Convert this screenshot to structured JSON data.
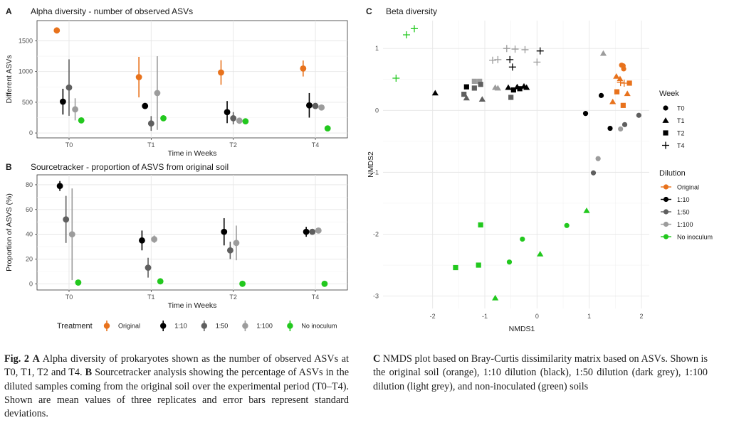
{
  "colors": {
    "Original": "#e8721c",
    "1:10": "#000000",
    "1:50": "#5f5f5f",
    "1:100": "#9c9c9c",
    "No inoculum": "#22c81e"
  },
  "chart_data": [
    {
      "panel": "A",
      "type": "scatter",
      "title": "Alpha diversity -  number of observed ASVs",
      "xlabel": "Time in Weeks",
      "ylabel": "Different ASVs",
      "categories": [
        "T0",
        "T1",
        "T2",
        "T4"
      ],
      "y_ticks": [
        "0",
        "500",
        "1000",
        "1500"
      ],
      "ylim": [
        -80,
        1830
      ],
      "grid": true,
      "series": [
        {
          "name": "Original",
          "mean": [
            1670,
            910,
            985,
            1050
          ],
          "sd": [
            0,
            330,
            200,
            130
          ]
        },
        {
          "name": "1:10",
          "mean": [
            510,
            440,
            340,
            450
          ],
          "sd": [
            210,
            0,
            180,
            200
          ]
        },
        {
          "name": "1:50",
          "mean": [
            740,
            155,
            240,
            440
          ],
          "sd": [
            460,
            120,
            100,
            0
          ]
        },
        {
          "name": "1:100",
          "mean": [
            385,
            650,
            200,
            415
          ],
          "sd": [
            180,
            600,
            0,
            0
          ]
        },
        {
          "name": "No inoculum",
          "mean": [
            205,
            240,
            190,
            75
          ],
          "sd": [
            0,
            0,
            0,
            0
          ]
        }
      ]
    },
    {
      "panel": "B",
      "type": "scatter",
      "title": "Sourcetracker - proportion of ASVS from original soil",
      "xlabel": "Time in Weeks",
      "ylabel": "Proportion of ASVS (%)",
      "categories": [
        "T0",
        "T1",
        "T2",
        "T4"
      ],
      "y_ticks": [
        "0",
        "20",
        "40",
        "60",
        "80"
      ],
      "ylim": [
        -5,
        88
      ],
      "grid": true,
      "series": [
        {
          "name": "1:10",
          "mean": [
            79,
            35,
            42,
            42
          ],
          "sd": [
            4,
            8,
            11,
            4
          ]
        },
        {
          "name": "1:50",
          "mean": [
            52,
            13,
            27,
            42
          ],
          "sd": [
            19,
            8,
            7,
            0
          ]
        },
        {
          "name": "1:100",
          "mean": [
            40,
            36,
            33,
            43
          ],
          "sd": [
            37,
            3,
            14,
            0
          ]
        },
        {
          "name": "No inoculum",
          "mean": [
            1,
            2,
            0,
            0
          ],
          "sd": [
            0,
            0,
            0,
            0
          ]
        }
      ]
    },
    {
      "panel": "C",
      "type": "scatter",
      "title": "Beta diversity",
      "xlabel": "NMDS1",
      "ylabel": "NMDS2",
      "x_ticks": [
        "-2",
        "-1",
        "0",
        "1",
        "2"
      ],
      "y_ticks": [
        "-3",
        "-2",
        "-1",
        "0",
        "1"
      ],
      "xlim": [
        -2.95,
        2.15
      ],
      "ylim": [
        -3.2,
        1.45
      ],
      "grid": true,
      "legend_position": "right",
      "points": [
        {
          "t": "T4",
          "d": "No inoculum",
          "x": -2.5,
          "y": 1.22
        },
        {
          "t": "T4",
          "d": "No inoculum",
          "x": -2.35,
          "y": 1.32
        },
        {
          "t": "T4",
          "d": "No inoculum",
          "x": -2.7,
          "y": 0.52
        },
        {
          "t": "T1",
          "d": "1:10",
          "x": -1.95,
          "y": 0.28
        },
        {
          "t": "T2",
          "d": "1:10",
          "x": -1.35,
          "y": 0.38
        },
        {
          "t": "T2",
          "d": "1:50",
          "x": -1.2,
          "y": 0.36
        },
        {
          "t": "T2",
          "d": "1:100",
          "x": -1.2,
          "y": 0.47
        },
        {
          "t": "T2",
          "d": "1:100",
          "x": -1.1,
          "y": 0.47
        },
        {
          "t": "T1",
          "d": "1:50",
          "x": -1.35,
          "y": 0.2
        },
        {
          "t": "T2",
          "d": "1:50",
          "x": -1.4,
          "y": 0.26
        },
        {
          "t": "T2",
          "d": "1:50",
          "x": -1.08,
          "y": 0.42
        },
        {
          "t": "T1",
          "d": "1:50",
          "x": -1.05,
          "y": 0.18
        },
        {
          "t": "T1",
          "d": "1:100",
          "x": -0.8,
          "y": 0.37
        },
        {
          "t": "T1",
          "d": "1:100",
          "x": -0.75,
          "y": 0.36
        },
        {
          "t": "T2",
          "d": "1:50",
          "x": -0.5,
          "y": 0.21
        },
        {
          "t": "T1",
          "d": "1:10",
          "x": -0.55,
          "y": 0.37
        },
        {
          "t": "T2",
          "d": "1:10",
          "x": -0.45,
          "y": 0.33
        },
        {
          "t": "T1",
          "d": "1:10",
          "x": -0.38,
          "y": 0.38
        },
        {
          "t": "T2",
          "d": "1:10",
          "x": -0.33,
          "y": 0.35
        },
        {
          "t": "T1",
          "d": "1:10",
          "x": -0.25,
          "y": 0.39
        },
        {
          "t": "T1",
          "d": "1:10",
          "x": -0.2,
          "y": 0.37
        },
        {
          "t": "T4",
          "d": "1:100",
          "x": -0.85,
          "y": 0.81
        },
        {
          "t": "T4",
          "d": "1:100",
          "x": -0.75,
          "y": 0.82
        },
        {
          "t": "T4",
          "d": "1:100",
          "x": -0.58,
          "y": 1.0
        },
        {
          "t": "T4",
          "d": "1:100",
          "x": -0.42,
          "y": 0.99
        },
        {
          "t": "T4",
          "d": "1:100",
          "x": -0.23,
          "y": 0.98
        },
        {
          "t": "T4",
          "d": "1:10",
          "x": -0.52,
          "y": 0.82
        },
        {
          "t": "T4",
          "d": "1:10",
          "x": -0.47,
          "y": 0.7
        },
        {
          "t": "T4",
          "d": "1:100",
          "x": 0.0,
          "y": 0.78
        },
        {
          "t": "T4",
          "d": "1:10",
          "x": 0.06,
          "y": 0.96
        },
        {
          "t": "T1",
          "d": "1:100",
          "x": 1.27,
          "y": 0.92
        },
        {
          "t": "T0",
          "d": "Original",
          "x": 1.62,
          "y": 0.73
        },
        {
          "t": "T0",
          "d": "Original",
          "x": 1.65,
          "y": 0.72
        },
        {
          "t": "T0",
          "d": "Original",
          "x": 1.66,
          "y": 0.67
        },
        {
          "t": "T1",
          "d": "Original",
          "x": 1.52,
          "y": 0.55
        },
        {
          "t": "T1",
          "d": "Original",
          "x": 1.59,
          "y": 0.51
        },
        {
          "t": "T4",
          "d": "Original",
          "x": 1.6,
          "y": 0.45
        },
        {
          "t": "T4",
          "d": "Original",
          "x": 1.67,
          "y": 0.44
        },
        {
          "t": "T2",
          "d": "Original",
          "x": 1.77,
          "y": 0.44
        },
        {
          "t": "T2",
          "d": "Original",
          "x": 1.53,
          "y": 0.3
        },
        {
          "t": "T1",
          "d": "Original",
          "x": 1.45,
          "y": 0.14
        },
        {
          "t": "T1",
          "d": "Original",
          "x": 1.73,
          "y": 0.27
        },
        {
          "t": "T2",
          "d": "Original",
          "x": 1.65,
          "y": 0.08
        },
        {
          "t": "T0",
          "d": "1:10",
          "x": 1.23,
          "y": 0.24
        },
        {
          "t": "T0",
          "d": "1:10",
          "x": 0.93,
          "y": -0.05
        },
        {
          "t": "T0",
          "d": "1:10",
          "x": 1.4,
          "y": -0.29
        },
        {
          "t": "T0",
          "d": "1:50",
          "x": 1.68,
          "y": -0.23
        },
        {
          "t": "T0",
          "d": "1:100",
          "x": 1.6,
          "y": -0.3
        },
        {
          "t": "T0",
          "d": "1:50",
          "x": 1.95,
          "y": -0.08
        },
        {
          "t": "T0",
          "d": "1:100",
          "x": 1.17,
          "y": -0.78
        },
        {
          "t": "T0",
          "d": "1:50",
          "x": 1.08,
          "y": -1.01
        },
        {
          "t": "T1",
          "d": "No inoculum",
          "x": 0.95,
          "y": -1.62
        },
        {
          "t": "T0",
          "d": "No inoculum",
          "x": 0.57,
          "y": -1.86
        },
        {
          "t": "T2",
          "d": "No inoculum",
          "x": -1.08,
          "y": -1.85
        },
        {
          "t": "T0",
          "d": "No inoculum",
          "x": -0.28,
          "y": -2.08
        },
        {
          "t": "T1",
          "d": "No inoculum",
          "x": 0.06,
          "y": -2.32
        },
        {
          "t": "T0",
          "d": "No inoculum",
          "x": -0.53,
          "y": -2.45
        },
        {
          "t": "T2",
          "d": "No inoculum",
          "x": -1.12,
          "y": -2.5
        },
        {
          "t": "T2",
          "d": "No inoculum",
          "x": -1.56,
          "y": -2.54
        },
        {
          "t": "T1",
          "d": "No inoculum",
          "x": -0.8,
          "y": -3.03
        }
      ]
    }
  ],
  "treatment_legend": {
    "title": "Treatment",
    "items": [
      "Original",
      "1:10",
      "1:50",
      "1:100",
      "No inoculum"
    ]
  },
  "week_legend": {
    "title": "Week",
    "items": [
      {
        "label": "T0",
        "shape": "circle"
      },
      {
        "label": "T1",
        "shape": "triangle"
      },
      {
        "label": "T2",
        "shape": "square"
      },
      {
        "label": "T4",
        "shape": "plus"
      }
    ]
  },
  "dilution_legend": {
    "title": "Dilution",
    "items": [
      "Original",
      "1:10",
      "1:50",
      "1:100",
      "No inoculum"
    ]
  },
  "captions": {
    "left_fig": "Fig. 2",
    "left_a": "A",
    "left_a_text": " Alpha diversity of prokaryotes shown as the number of observed ASVs at T0, T1, T2 and T4. ",
    "left_b": "B",
    "left_b_text": " Sourcetracker analysis showing the percentage of ASVs in the diluted samples coming from the original soil over the experimental period (T0–T4). Shown are mean values of three replicates and error bars represent standard deviations.",
    "right_c": "C",
    "right_c_text": " NMDS plot based on Bray-Curtis dissimilarity matrix based on ASVs. Shown is the original soil (orange), 1:10 dilution (black), 1:50 dilution (dark grey), 1:100 dilution (light grey), and non-inoculated (green) soils"
  }
}
